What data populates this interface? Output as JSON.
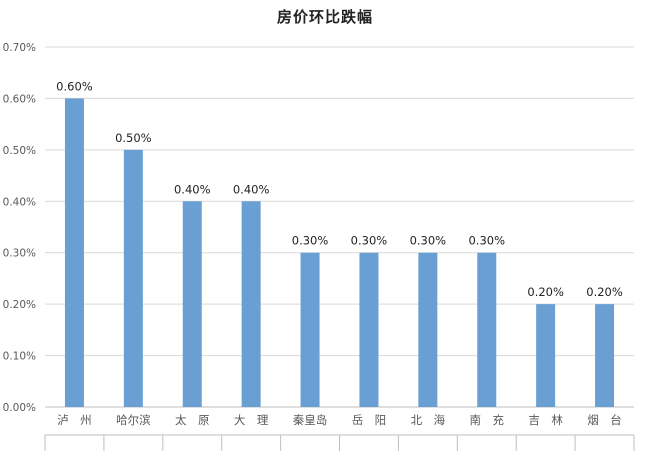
{
  "chart_data": {
    "type": "bar",
    "title": "房价环比跌幅",
    "xlabel": "",
    "ylabel": "",
    "categories": [
      "泸　州",
      "哈尔滨",
      "太　原",
      "大　理",
      "秦皇岛",
      "岳　阳",
      "北　海",
      "南　充",
      "吉　林",
      "烟　台"
    ],
    "values": [
      0.6,
      0.5,
      0.4,
      0.4,
      0.3,
      0.3,
      0.3,
      0.3,
      0.2,
      0.2
    ],
    "data_labels": [
      "0.60%",
      "0.50%",
      "0.40%",
      "0.40%",
      "0.30%",
      "0.30%",
      "0.30%",
      "0.30%",
      "0.20%",
      "0.20%"
    ],
    "y_ticks": [
      0,
      0.1,
      0.2,
      0.3,
      0.4,
      0.5,
      0.6,
      0.7
    ],
    "y_tick_labels": [
      "0.00%",
      "0.10%",
      "0.20%",
      "0.30%",
      "0.40%",
      "0.50%",
      "0.60%",
      "0.70%"
    ],
    "ylim": [
      0,
      0.7
    ],
    "unit": "%",
    "grid": true,
    "legend": "none",
    "colors": {
      "bar": "#699fd3",
      "bar_edge": "#5b8fc4",
      "grid": "#d9d9d9",
      "axis": "#bfbfbf",
      "tick_text": "#595959",
      "label_text": "#222222"
    }
  }
}
